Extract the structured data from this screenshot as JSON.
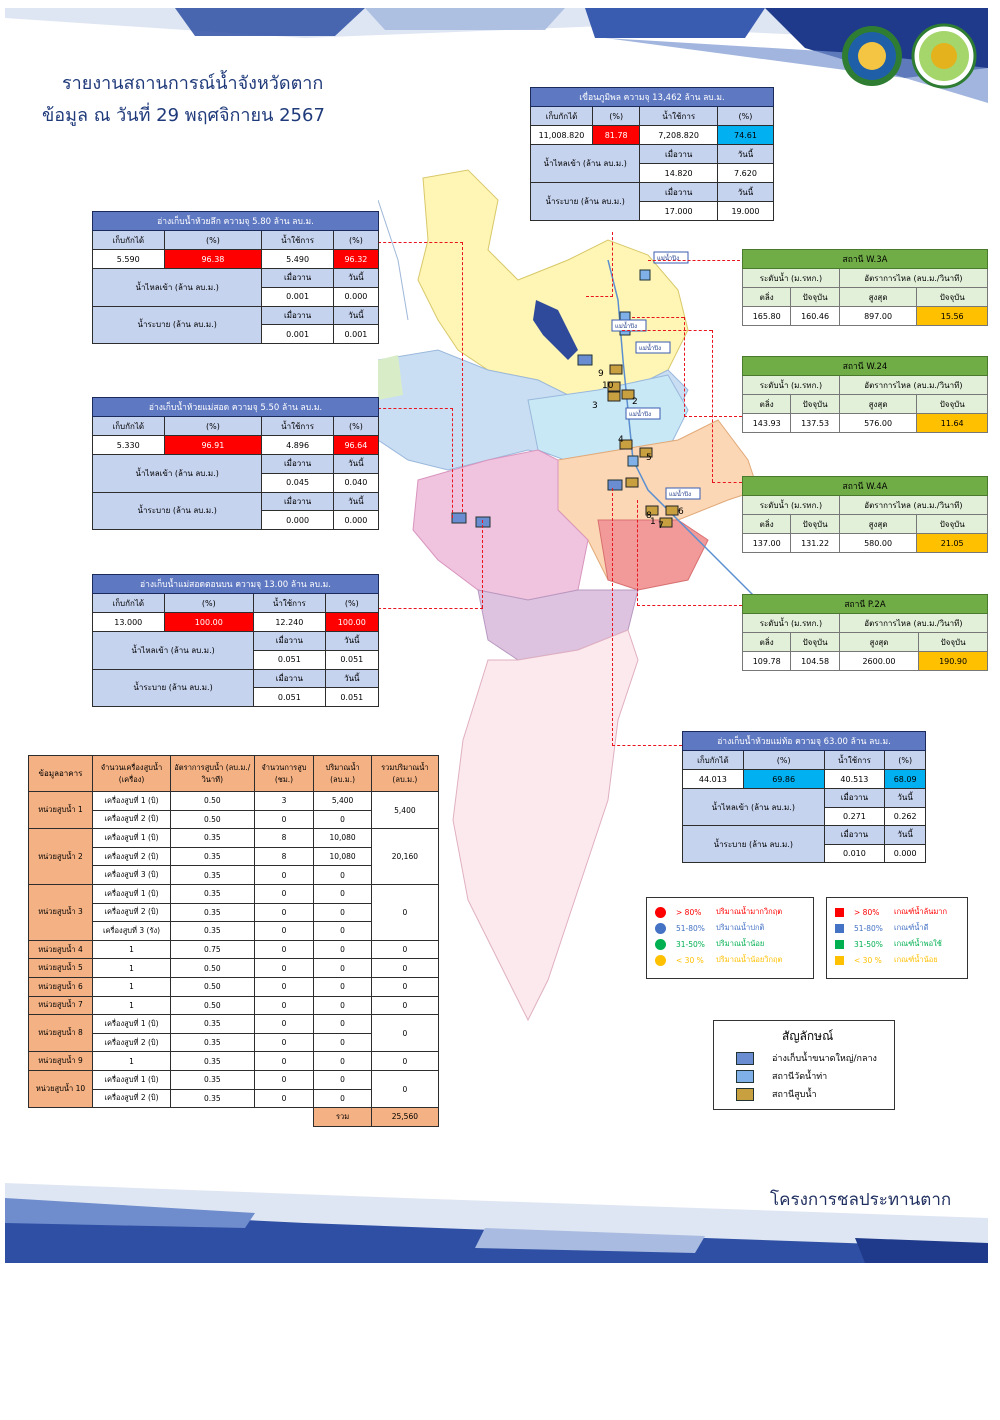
{
  "header": {
    "title": "รายงานสถานการณ์น้ำจังหวัดตาก",
    "subtitle": "ข้อมูล ณ วันที่  29  พฤศจิกายน  2567"
  },
  "footer": {
    "org": "โครงการชลประทานตาก"
  },
  "common": {
    "stored": "เก็บกักได้",
    "pct": "(%)",
    "usable": "น้ำใช้การ",
    "inflow": "น้ำไหลเข้า (ล้าน ลบ.ม.)",
    "release": "น้ำระบาย (ล้าน ลบ.ม.)",
    "yesterday": "เมื่อวาน",
    "today": "วันนี้",
    "level": "ระดับน้ำ (ม.รทก.)",
    "flow": "อัตราการไหล (ลบ.ม./วินาที)",
    "bank": "ตลิ่ง",
    "current": "ปัจจุบัน",
    "max": "สูงสุด"
  },
  "bhumibol": {
    "caption": "เขื่อนภูมิพล ความจุ 13,462 ล้าน ลบ.ม.",
    "stored": "11,008.820",
    "stored_pct": "81.78",
    "usable": "7,208.820",
    "usable_pct": "74.61",
    "inflow_y": "14.820",
    "inflow_t": "7.620",
    "release_y": "17.000",
    "release_t": "19.000",
    "stored_pct_color": "#ff0000",
    "usable_pct_color": "#00b0f0"
  },
  "huaylik": {
    "caption": "อ่างเก็บน้ำห้วยลึก ความจุ 5.80 ล้าน ลบ.ม.",
    "stored": "5.590",
    "stored_pct": "96.38",
    "usable": "5.490",
    "usable_pct": "96.32",
    "inflow_y": "0.001",
    "inflow_t": "0.000",
    "release_y": "0.001",
    "release_t": "0.001"
  },
  "maesot": {
    "caption": "อ่างเก็บน้ำห้วยแม่สอด ความจุ 5.50 ล้าน ลบ.ม.",
    "stored": "5.330",
    "stored_pct": "96.91",
    "usable": "4.896",
    "usable_pct": "96.64",
    "inflow_y": "0.045",
    "inflow_t": "0.040",
    "release_y": "0.000",
    "release_t": "0.000"
  },
  "maesot_upper": {
    "caption": "อ่างเก็บน้ำแม่สอดตอนบน ความจุ 13.00 ล้าน ลบ.ม.",
    "stored": "13.000",
    "stored_pct": "100.00",
    "usable": "12.240",
    "usable_pct": "100.00",
    "inflow_y": "0.051",
    "inflow_t": "0.051",
    "release_y": "0.051",
    "release_t": "0.051"
  },
  "maetho": {
    "caption": "อ่างเก็บน้ำห้วยแม่ท้อ ความจุ 63.00 ล้าน ลบ.ม.",
    "stored": "44.013",
    "stored_pct": "69.86",
    "usable": "40.513",
    "usable_pct": "68.09",
    "inflow_y": "0.271",
    "inflow_t": "0.262",
    "release_y": "0.010",
    "release_t": "0.000"
  },
  "stations": [
    {
      "name": "สถานี W.3A",
      "bank": "165.80",
      "current": "160.46",
      "max": "897.00",
      "flow": "15.56"
    },
    {
      "name": "สถานี W.24",
      "bank": "143.93",
      "current": "137.53",
      "max": "576.00",
      "flow": "11.64"
    },
    {
      "name": "สถานี W.4A",
      "bank": "137.00",
      "current": "131.22",
      "max": "580.00",
      "flow": "21.05"
    },
    {
      "name": "สถานี P.2A",
      "bank": "109.78",
      "current": "104.58",
      "max": "2600.00",
      "flow": "190.90"
    }
  ],
  "pump_table": {
    "headers": [
      "ข้อมูลอาคาร",
      "จำนวนเครื่องสูบน้ำ (เครื่อง)",
      "อัตราการสูบน้ำ (ลบ.ม./วินาที)",
      "จำนวนการสูบ (ชม.)",
      "ปริมาณน้ำ (ลบ.ม.)",
      "รวมปริมาณน้ำ (ลบ.ม.)"
    ],
    "units": [
      {
        "name": "หน่วยสูบน้ำ 1",
        "total": "5,400",
        "rows": [
          [
            "เครื่องสูบที่ 1 (บิ)",
            "0.50",
            "3",
            "5,400"
          ],
          [
            "เครื่องสูบที่ 2 (บิ)",
            "0.50",
            "0",
            "0"
          ]
        ]
      },
      {
        "name": "หน่วยสูบน้ำ 2",
        "total": "20,160",
        "rows": [
          [
            "เครื่องสูบที่ 1 (บิ)",
            "0.35",
            "8",
            "10,080"
          ],
          [
            "เครื่องสูบที่ 2 (บิ)",
            "0.35",
            "8",
            "10,080"
          ],
          [
            "เครื่องสูบที่ 3 (บิ)",
            "0.35",
            "0",
            "0"
          ]
        ]
      },
      {
        "name": "หน่วยสูบน้ำ 3",
        "total": "0",
        "rows": [
          [
            "เครื่องสูบที่ 1 (บิ)",
            "0.35",
            "0",
            "0"
          ],
          [
            "เครื่องสูบที่ 2 (บิ)",
            "0.35",
            "0",
            "0"
          ],
          [
            "เครื่องสูบที่ 3 (รัง)",
            "0.35",
            "0",
            "0"
          ]
        ]
      },
      {
        "name": "หน่วยสูบน้ำ 4",
        "total": "0",
        "rows": [
          [
            "1",
            "0.75",
            "0",
            "0"
          ]
        ]
      },
      {
        "name": "หน่วยสูบน้ำ 5",
        "total": "0",
        "rows": [
          [
            "1",
            "0.50",
            "0",
            "0"
          ]
        ]
      },
      {
        "name": "หน่วยสูบน้ำ 6",
        "total": "0",
        "rows": [
          [
            "1",
            "0.50",
            "0",
            "0"
          ]
        ]
      },
      {
        "name": "หน่วยสูบน้ำ 7",
        "total": "0",
        "rows": [
          [
            "1",
            "0.50",
            "0",
            "0"
          ]
        ]
      },
      {
        "name": "หน่วยสูบน้ำ 8",
        "total": "0",
        "rows": [
          [
            "เครื่องสูบที่ 1 (บิ)",
            "0.35",
            "0",
            "0"
          ],
          [
            "เครื่องสูบที่ 2 (บิ)",
            "0.35",
            "0",
            "0"
          ]
        ]
      },
      {
        "name": "หน่วยสูบน้ำ 9",
        "total": "0",
        "rows": [
          [
            "1",
            "0.35",
            "0",
            "0"
          ]
        ]
      },
      {
        "name": "หน่วยสูบน้ำ 10",
        "total": "0",
        "rows": [
          [
            "เครื่องสูบที่ 1 (บิ)",
            "0.35",
            "0",
            "0"
          ],
          [
            "เครื่องสูบที่ 2 (บิ)",
            "0.35",
            "0",
            "0"
          ]
        ]
      }
    ],
    "sum_label": "รวม",
    "sum_value": "25,560"
  },
  "legend_dam": [
    {
      "color": "#ff0000",
      "range": "> 80%",
      "label": "ปริมาณน้ำมากวิกฤต"
    },
    {
      "color": "#4472c4",
      "range": "51-80%",
      "label": "ปริมาณน้ำปกติ"
    },
    {
      "color": "#00b050",
      "range": "31-50%",
      "label": "ปริมาณน้ำน้อย"
    },
    {
      "color": "#ffc000",
      "range": "< 30 %",
      "label": "ปริมาณน้ำน้อยวิกฤต"
    }
  ],
  "legend_station": [
    {
      "color": "#ff0000",
      "range": "> 80%",
      "label": "เกณฑ์น้ำล้นมาก"
    },
    {
      "color": "#4472c4",
      "range": "51-80%",
      "label": "เกณฑ์น้ำดี"
    },
    {
      "color": "#00b050",
      "range": "31-50%",
      "label": "เกณฑ์น้ำพอใช้"
    },
    {
      "color": "#ffc000",
      "range": "< 30 %",
      "label": "เกณฑ์น้ำน้อย"
    }
  ],
  "symbols": {
    "title": "สัญลักษณ์",
    "items": [
      {
        "icon": "reservoir-icon",
        "label": "อ่างเก็บน้ำขนาดใหญ่/กลาง"
      },
      {
        "icon": "gauge-station-icon",
        "label": "สถานีวัดน้ำท่า"
      },
      {
        "icon": "pump-station-icon",
        "label": "สถานีสูบน้ำ"
      }
    ]
  },
  "map": {
    "river_labels": [
      "แม่น้ำปิง",
      "แม่น้ำปิง",
      "แม่น้ำปิง",
      "แม่น้ำปิง",
      "แม่น้ำปิง"
    ],
    "pump_numbers": [
      "1",
      "2",
      "3",
      "4",
      "5",
      "6",
      "7",
      "8",
      "9",
      "10"
    ]
  }
}
